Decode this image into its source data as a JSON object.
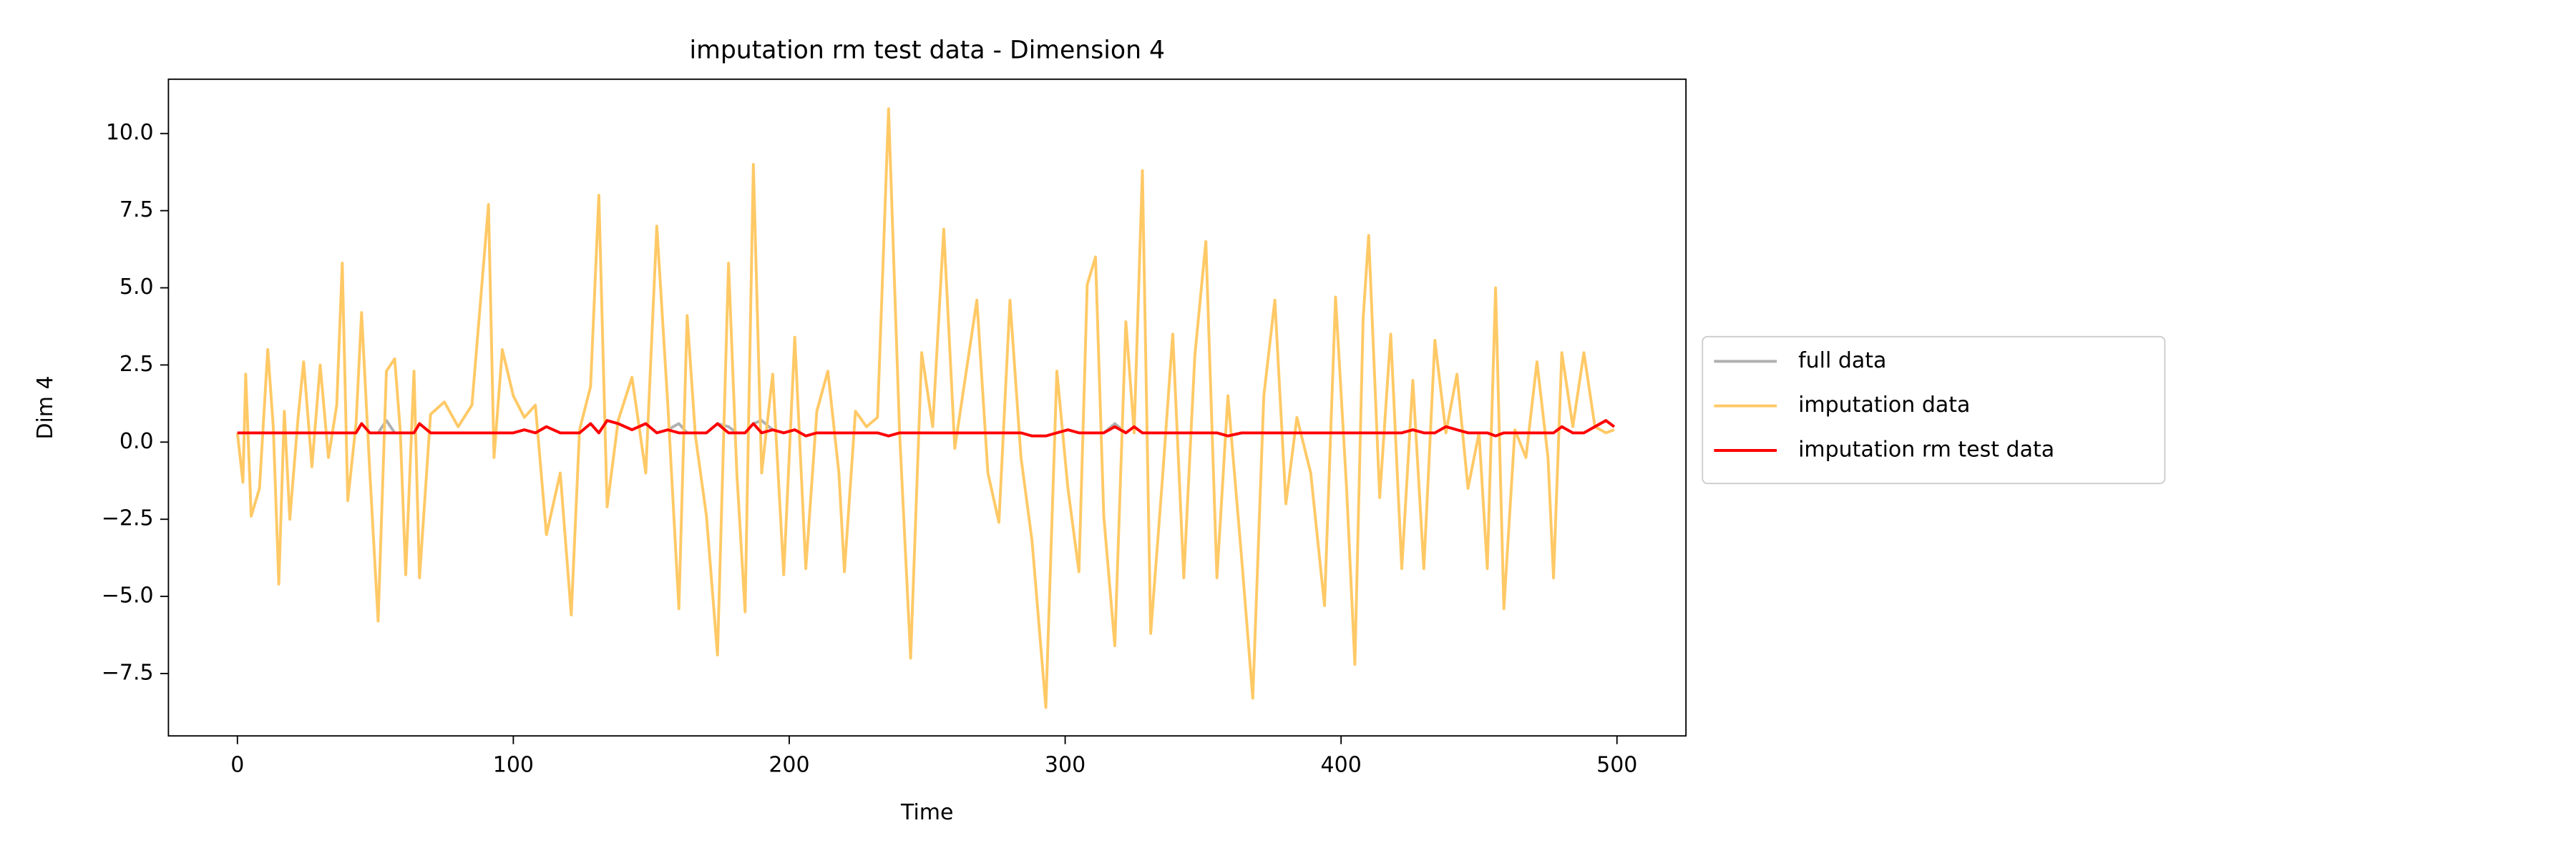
{
  "chart_data": {
    "type": "line",
    "title": "imputation rm test data - Dimension 4",
    "xlabel": "Time",
    "ylabel": "Dim 4",
    "x": [
      0,
      2,
      3,
      5,
      8,
      11,
      13,
      15,
      17,
      19,
      22,
      24,
      27,
      30,
      33,
      36,
      38,
      40,
      43,
      45,
      48,
      51,
      54,
      57,
      59,
      61,
      64,
      66,
      70,
      75,
      80,
      85,
      91,
      93,
      96,
      100,
      104,
      108,
      112,
      117,
      121,
      124,
      128,
      131,
      134,
      138,
      143,
      148,
      152,
      156,
      160,
      163,
      166,
      170,
      174,
      178,
      181,
      184,
      187,
      190,
      194,
      198,
      202,
      206,
      210,
      214,
      218,
      220,
      224,
      228,
      232,
      236,
      240,
      244,
      248,
      252,
      256,
      260,
      264,
      268,
      272,
      276,
      280,
      284,
      288,
      293,
      297,
      301,
      305,
      308,
      311,
      314,
      318,
      322,
      325,
      328,
      331,
      335,
      339,
      343,
      347,
      351,
      355,
      359,
      364,
      368,
      372,
      376,
      380,
      384,
      389,
      394,
      398,
      402,
      405,
      408,
      410,
      414,
      418,
      422,
      426,
      430,
      434,
      438,
      442,
      446,
      450,
      453,
      456,
      459,
      463,
      467,
      471,
      475,
      477,
      480,
      484,
      488,
      492,
      496,
      499
    ],
    "series": [
      {
        "name": "full data",
        "color": "#b0b0b0",
        "values": [
          0.3,
          0.3,
          0.3,
          0.3,
          0.3,
          0.3,
          0.3,
          0.3,
          0.3,
          0.3,
          0.3,
          0.3,
          0.3,
          0.3,
          0.3,
          0.3,
          0.3,
          0.3,
          0.3,
          0.6,
          0.3,
          0.3,
          0.7,
          0.3,
          0.3,
          0.3,
          0.3,
          0.6,
          0.3,
          0.3,
          0.3,
          0.3,
          0.3,
          0.3,
          0.3,
          0.3,
          0.4,
          0.3,
          0.5,
          0.3,
          0.3,
          0.3,
          0.6,
          0.3,
          0.7,
          0.6,
          0.4,
          0.6,
          0.3,
          0.4,
          0.6,
          0.3,
          0.3,
          0.3,
          0.6,
          0.5,
          0.3,
          0.3,
          0.6,
          0.7,
          0.4,
          0.3,
          0.4,
          0.2,
          0.3,
          0.3,
          0.3,
          0.3,
          0.3,
          0.3,
          0.3,
          0.2,
          0.3,
          0.3,
          0.3,
          0.3,
          0.3,
          0.3,
          0.3,
          0.3,
          0.3,
          0.3,
          0.3,
          0.3,
          0.2,
          0.2,
          0.3,
          0.4,
          0.3,
          0.3,
          0.3,
          0.3,
          0.6,
          0.3,
          0.5,
          0.3,
          0.3,
          0.3,
          0.3,
          0.3,
          0.3,
          0.3,
          0.3,
          0.2,
          0.3,
          0.3,
          0.3,
          0.3,
          0.3,
          0.3,
          0.3,
          0.3,
          0.3,
          0.3,
          0.3,
          0.3,
          0.3,
          0.3,
          0.3,
          0.3,
          0.4,
          0.3,
          0.3,
          0.5,
          0.4,
          0.3,
          0.3,
          0.3,
          0.2,
          0.3,
          0.3,
          0.3,
          0.3,
          0.3,
          0.3,
          0.5,
          0.3,
          0.3,
          0.5,
          0.7,
          0.5
        ]
      },
      {
        "name": "imputation data",
        "color": "#ffc966",
        "values": [
          0.3,
          -1.3,
          2.2,
          -2.4,
          -1.5,
          3.0,
          0.5,
          -4.6,
          1.0,
          -2.5,
          0.8,
          2.6,
          -0.8,
          2.5,
          -0.5,
          1.2,
          5.8,
          -1.9,
          0.6,
          4.2,
          -1.0,
          -5.8,
          2.3,
          2.7,
          0.4,
          -4.3,
          2.3,
          -4.4,
          0.9,
          1.3,
          0.5,
          1.2,
          7.7,
          -0.5,
          3.0,
          1.5,
          0.8,
          1.2,
          -3.0,
          -1.0,
          -5.6,
          0.4,
          1.8,
          8.0,
          -2.1,
          0.7,
          2.1,
          -1.0,
          7.0,
          1.2,
          -5.4,
          4.1,
          0.2,
          -2.4,
          -6.9,
          5.8,
          -1.0,
          -5.5,
          9.0,
          -1.0,
          2.2,
          -4.3,
          3.4,
          -4.1,
          1.0,
          2.3,
          -1.0,
          -4.2,
          1.0,
          0.5,
          0.8,
          10.8,
          0.3,
          -7.0,
          2.9,
          0.5,
          6.9,
          -0.2,
          2.2,
          4.6,
          -1.0,
          -2.6,
          4.6,
          -0.5,
          -3.2,
          -8.6,
          2.3,
          -1.5,
          -4.2,
          5.1,
          6.0,
          -2.4,
          -6.6,
          3.9,
          0.3,
          8.8,
          -6.2,
          -1.5,
          3.5,
          -4.4,
          2.8,
          6.5,
          -4.4,
          1.5,
          -3.8,
          -8.3,
          1.5,
          4.6,
          -2.0,
          0.8,
          -1.0,
          -5.3,
          4.7,
          -1.5,
          -7.2,
          4.0,
          6.7,
          -1.8,
          3.5,
          -4.1,
          2.0,
          -4.1,
          3.3,
          0.3,
          2.2,
          -1.5,
          0.3,
          -4.1,
          5.0,
          -5.4,
          0.4,
          -0.5,
          2.6,
          -0.5,
          -4.4,
          2.9,
          0.5,
          2.9,
          0.5,
          0.3,
          0.4
        ]
      },
      {
        "name": "imputation rm test data",
        "color": "#ff0000",
        "values": [
          0.3,
          0.3,
          0.3,
          0.3,
          0.3,
          0.3,
          0.3,
          0.3,
          0.3,
          0.3,
          0.3,
          0.3,
          0.3,
          0.3,
          0.3,
          0.3,
          0.3,
          0.3,
          0.3,
          0.6,
          0.3,
          0.3,
          0.3,
          0.3,
          0.3,
          0.3,
          0.3,
          0.6,
          0.3,
          0.3,
          0.3,
          0.3,
          0.3,
          0.3,
          0.3,
          0.3,
          0.4,
          0.3,
          0.5,
          0.3,
          0.3,
          0.3,
          0.6,
          0.3,
          0.7,
          0.6,
          0.4,
          0.6,
          0.3,
          0.4,
          0.3,
          0.3,
          0.3,
          0.3,
          0.6,
          0.3,
          0.3,
          0.3,
          0.6,
          0.3,
          0.4,
          0.3,
          0.4,
          0.2,
          0.3,
          0.3,
          0.3,
          0.3,
          0.3,
          0.3,
          0.3,
          0.2,
          0.3,
          0.3,
          0.3,
          0.3,
          0.3,
          0.3,
          0.3,
          0.3,
          0.3,
          0.3,
          0.3,
          0.3,
          0.2,
          0.2,
          0.3,
          0.4,
          0.3,
          0.3,
          0.3,
          0.3,
          0.5,
          0.3,
          0.5,
          0.3,
          0.3,
          0.3,
          0.3,
          0.3,
          0.3,
          0.3,
          0.3,
          0.2,
          0.3,
          0.3,
          0.3,
          0.3,
          0.3,
          0.3,
          0.3,
          0.3,
          0.3,
          0.3,
          0.3,
          0.3,
          0.3,
          0.3,
          0.3,
          0.3,
          0.4,
          0.3,
          0.3,
          0.5,
          0.4,
          0.3,
          0.3,
          0.3,
          0.2,
          0.3,
          0.3,
          0.3,
          0.3,
          0.3,
          0.3,
          0.5,
          0.3,
          0.3,
          0.5,
          0.7,
          0.5
        ]
      }
    ],
    "xlim": [
      -25,
      525
    ],
    "ylim": [
      -9.52,
      11.76
    ],
    "xticks": [
      0,
      100,
      200,
      300,
      400,
      500
    ],
    "yticks": [
      {
        "value": -7.5,
        "label": "−7.5"
      },
      {
        "value": -5,
        "label": "−5.0"
      },
      {
        "value": -2.5,
        "label": "−2.5"
      },
      {
        "value": 0,
        "label": "0.0"
      },
      2.5,
      {
        "value": 5,
        "label": "5.0"
      },
      7.5,
      {
        "value": 10,
        "label": "10.0"
      }
    ],
    "grid": false,
    "legend": "outside-right"
  }
}
